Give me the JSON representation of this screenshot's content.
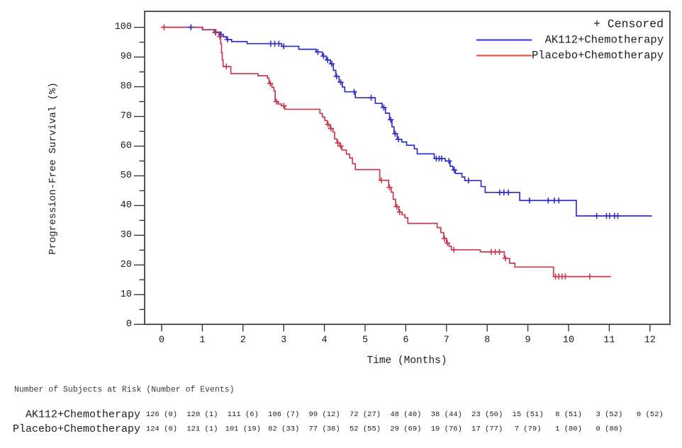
{
  "chart_data": {
    "type": "line",
    "subtype": "kaplan-meier-step",
    "title": "",
    "xlabel": "Time (Months)",
    "ylabel": "Progression-Free Survival (%)",
    "xlim": [
      0,
      12
    ],
    "ylim": [
      0,
      100
    ],
    "xticks": [
      0,
      1,
      2,
      3,
      4,
      5,
      6,
      7,
      8,
      9,
      10,
      11,
      12
    ],
    "ytick_major_step": 10,
    "ytick_minor_step": 5,
    "grid": "off",
    "legend": {
      "position": "top-right-inside",
      "censored_label": "+ Censored",
      "entries": [
        {
          "label": "AK112+Chemotherapy",
          "color": "#4343e0"
        },
        {
          "label": "Placebo+Chemotherapy",
          "color": "#ef5252"
        }
      ]
    },
    "series": [
      {
        "name": "AK112+Chemotherapy",
        "color": "#2f2fc8",
        "end_time": 12.05,
        "steps": [
          [
            0,
            100
          ],
          [
            1.0,
            99.2
          ],
          [
            1.3,
            98.4
          ],
          [
            1.44,
            97.6
          ],
          [
            1.52,
            96.8
          ],
          [
            1.6,
            95.9
          ],
          [
            1.72,
            95.2
          ],
          [
            2.1,
            94.5
          ],
          [
            2.95,
            93.6
          ],
          [
            3.37,
            92.6
          ],
          [
            3.8,
            91.7
          ],
          [
            3.95,
            90.3
          ],
          [
            4.05,
            89.0
          ],
          [
            4.15,
            87.7
          ],
          [
            4.22,
            85.5
          ],
          [
            4.28,
            83.5
          ],
          [
            4.36,
            81.5
          ],
          [
            4.44,
            79.9
          ],
          [
            4.5,
            78.3
          ],
          [
            4.76,
            76.3
          ],
          [
            5.25,
            74.4
          ],
          [
            5.42,
            73.0
          ],
          [
            5.5,
            71.1
          ],
          [
            5.6,
            68.9
          ],
          [
            5.66,
            66.5
          ],
          [
            5.71,
            64.2
          ],
          [
            5.79,
            62.3
          ],
          [
            5.9,
            61.4
          ],
          [
            6.02,
            60.3
          ],
          [
            6.21,
            59.1
          ],
          [
            6.28,
            57.4
          ],
          [
            6.7,
            55.8
          ],
          [
            6.97,
            55.0
          ],
          [
            7.09,
            53.2
          ],
          [
            7.16,
            52.0
          ],
          [
            7.22,
            50.8
          ],
          [
            7.38,
            49.6
          ],
          [
            7.45,
            48.4
          ],
          [
            7.85,
            46.4
          ],
          [
            7.95,
            44.4
          ],
          [
            8.8,
            41.7
          ],
          [
            10.19,
            36.5
          ]
        ],
        "censors": [
          [
            0.72,
            100
          ],
          [
            1.33,
            98.4
          ],
          [
            1.46,
            97.6
          ],
          [
            1.62,
            95.9
          ],
          [
            2.68,
            94.5
          ],
          [
            2.78,
            94.5
          ],
          [
            2.88,
            94.5
          ],
          [
            3.0,
            93.6
          ],
          [
            3.84,
            91.7
          ],
          [
            3.98,
            90.3
          ],
          [
            4.08,
            89.0
          ],
          [
            4.18,
            87.7
          ],
          [
            4.3,
            83.5
          ],
          [
            4.4,
            81.5
          ],
          [
            4.73,
            78.3
          ],
          [
            5.15,
            76.3
          ],
          [
            5.46,
            73.0
          ],
          [
            5.63,
            68.9
          ],
          [
            5.74,
            64.2
          ],
          [
            5.82,
            62.3
          ],
          [
            6.75,
            55.8
          ],
          [
            6.82,
            55.8
          ],
          [
            6.88,
            55.8
          ],
          [
            7.06,
            55.0
          ],
          [
            7.19,
            52.0
          ],
          [
            7.54,
            48.4
          ],
          [
            8.31,
            44.4
          ],
          [
            8.41,
            44.4
          ],
          [
            8.52,
            44.4
          ],
          [
            9.04,
            41.7
          ],
          [
            9.5,
            41.7
          ],
          [
            9.65,
            41.7
          ],
          [
            9.76,
            41.7
          ],
          [
            10.69,
            36.5
          ],
          [
            10.93,
            36.5
          ],
          [
            11.01,
            36.5
          ],
          [
            11.13,
            36.5
          ],
          [
            11.21,
            36.5
          ]
        ]
      },
      {
        "name": "Placebo+Chemotherapy",
        "color": "#c83a50",
        "end_time": 11.04,
        "steps": [
          [
            0,
            100
          ],
          [
            1.01,
            99.2
          ],
          [
            1.33,
            98.2
          ],
          [
            1.41,
            96.9
          ],
          [
            1.45,
            94.5
          ],
          [
            1.47,
            91.5
          ],
          [
            1.49,
            89.0
          ],
          [
            1.51,
            86.8
          ],
          [
            1.7,
            84.4
          ],
          [
            2.37,
            83.7
          ],
          [
            2.6,
            82.9
          ],
          [
            2.64,
            81.1
          ],
          [
            2.71,
            79.8
          ],
          [
            2.76,
            78.6
          ],
          [
            2.79,
            75.0
          ],
          [
            2.86,
            74.2
          ],
          [
            2.94,
            73.6
          ],
          [
            3.03,
            72.4
          ],
          [
            3.89,
            71.0
          ],
          [
            3.95,
            69.8
          ],
          [
            4.01,
            68.6
          ],
          [
            4.07,
            67.3
          ],
          [
            4.14,
            65.9
          ],
          [
            4.21,
            64.8
          ],
          [
            4.25,
            62.4
          ],
          [
            4.31,
            61.1
          ],
          [
            4.38,
            60.0
          ],
          [
            4.43,
            58.7
          ],
          [
            4.54,
            57.3
          ],
          [
            4.62,
            56.0
          ],
          [
            4.69,
            54.1
          ],
          [
            4.76,
            52.1
          ],
          [
            5.36,
            48.5
          ],
          [
            5.58,
            46.1
          ],
          [
            5.64,
            44.5
          ],
          [
            5.69,
            42.1
          ],
          [
            5.75,
            39.6
          ],
          [
            5.83,
            37.8
          ],
          [
            5.91,
            36.9
          ],
          [
            5.98,
            35.9
          ],
          [
            6.05,
            34.0
          ],
          [
            6.77,
            32.6
          ],
          [
            6.86,
            30.9
          ],
          [
            6.93,
            28.9
          ],
          [
            7.0,
            27.4
          ],
          [
            7.06,
            26.3
          ],
          [
            7.12,
            25.1
          ],
          [
            7.83,
            24.4
          ],
          [
            8.42,
            22.2
          ],
          [
            8.55,
            20.6
          ],
          [
            8.68,
            19.3
          ],
          [
            9.63,
            16.1
          ]
        ],
        "censors": [
          [
            0.06,
            100
          ],
          [
            1.32,
            98.2
          ],
          [
            1.43,
            96.9
          ],
          [
            1.59,
            86.8
          ],
          [
            2.67,
            81.1
          ],
          [
            2.82,
            75.0
          ],
          [
            3.0,
            73.6
          ],
          [
            4.09,
            67.3
          ],
          [
            4.16,
            65.9
          ],
          [
            4.33,
            61.1
          ],
          [
            4.4,
            60.0
          ],
          [
            5.4,
            48.5
          ],
          [
            5.6,
            46.1
          ],
          [
            5.78,
            39.6
          ],
          [
            5.85,
            37.8
          ],
          [
            6.95,
            28.9
          ],
          [
            7.02,
            27.4
          ],
          [
            7.18,
            25.1
          ],
          [
            8.1,
            24.4
          ],
          [
            8.2,
            24.4
          ],
          [
            8.3,
            24.4
          ],
          [
            8.45,
            22.2
          ],
          [
            9.68,
            16.1
          ],
          [
            9.76,
            16.1
          ],
          [
            9.84,
            16.1
          ],
          [
            9.92,
            16.1
          ],
          [
            10.52,
            16.1
          ]
        ]
      }
    ]
  },
  "risk_table": {
    "header": "Number of Subjects at Risk (Number of Events)",
    "times": [
      0,
      1,
      2,
      3,
      4,
      5,
      6,
      7,
      8,
      9,
      10,
      11,
      12
    ],
    "rows": [
      {
        "label": "AK112+Chemotherapy",
        "label_color": "#4545d8",
        "value_color": "#8585d8",
        "values": [
          "126 (0)",
          "120 (1)",
          "111 (6)",
          "106 (7)",
          "99 (12)",
          "72 (27)",
          "48 (40)",
          "38 (44)",
          "23 (50)",
          "15 (51)",
          "8 (51)",
          "3 (52)",
          "0 (52)"
        ]
      },
      {
        "label": "Placebo+Chemotherapy",
        "label_color": "#d84a58",
        "value_color": "#d8919a",
        "values": [
          "124 (0)",
          "121 (1)",
          "101 (19)",
          "82 (33)",
          "77 (38)",
          "52 (55)",
          "29 (69)",
          "19 (76)",
          "17 (77)",
          "7 (79)",
          "1 (80)",
          "0 (80)"
        ]
      }
    ]
  }
}
